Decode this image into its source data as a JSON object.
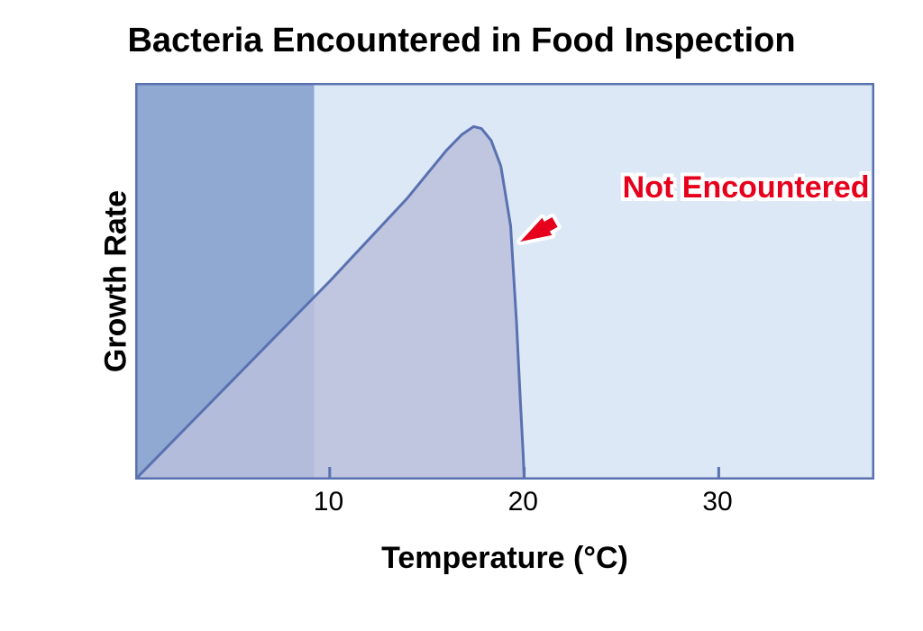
{
  "title": "Bacteria Encountered in Food Inspection",
  "chart": {
    "type": "area",
    "xlabel": "Temperature (°C)",
    "ylabel": "Growth Rate",
    "xlim": [
      0,
      38
    ],
    "ylim": [
      0,
      10
    ],
    "ticks_x": [
      10,
      20,
      30
    ],
    "background_color": "#ffffff",
    "plot_light_fill": "#dce8f5",
    "plot_dark_fill": "#90a9d3",
    "border_color": "#5971b0",
    "curve_color": "#5971b0",
    "curve_fill": "#bbc0dc",
    "curve_stroke_width": 3,
    "shade_split_x": 9.2,
    "curve_points": [
      [
        0.0,
        0.0
      ],
      [
        2.0,
        1.0
      ],
      [
        4.0,
        2.0
      ],
      [
        6.0,
        3.0
      ],
      [
        8.0,
        4.0
      ],
      [
        10.0,
        5.0
      ],
      [
        12.0,
        6.05
      ],
      [
        14.0,
        7.1
      ],
      [
        15.0,
        7.7
      ],
      [
        16.0,
        8.3
      ],
      [
        16.8,
        8.7
      ],
      [
        17.4,
        8.9
      ],
      [
        17.8,
        8.85
      ],
      [
        18.3,
        8.55
      ],
      [
        18.8,
        7.9
      ],
      [
        19.3,
        6.4
      ],
      [
        19.6,
        4.0
      ],
      [
        19.8,
        2.0
      ],
      [
        19.95,
        0.6
      ],
      [
        20.0,
        0.0
      ]
    ],
    "tick_mark_len": 14,
    "axis_stroke_width": 2
  },
  "annotation": {
    "text": "Not Encountered",
    "color": "#e6001c",
    "fontsize": 34,
    "arrow_color": "#e6001c",
    "arrow_from": [
      24.5,
      7.3
    ],
    "arrow_to": [
      19.8,
      6.0
    ]
  },
  "typography": {
    "title_fontsize": 38,
    "axis_label_fontsize": 34,
    "tick_fontsize": 30,
    "annotation_fontsize": 34
  }
}
